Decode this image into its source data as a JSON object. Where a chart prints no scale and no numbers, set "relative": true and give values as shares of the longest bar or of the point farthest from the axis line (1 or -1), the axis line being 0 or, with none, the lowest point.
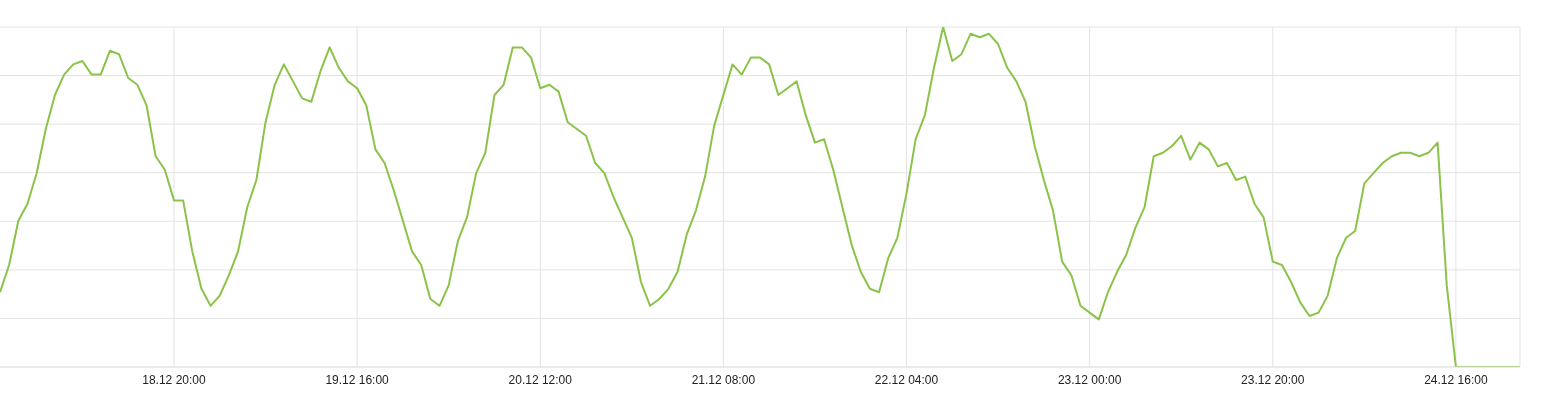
{
  "chart_data": {
    "type": "line",
    "relative": true,
    "grid": true,
    "tick_labels": "x",
    "marker": "none",
    "line_style": "solid",
    "legend": false,
    "categories": [
      null,
      null,
      null,
      null,
      null,
      null,
      null,
      null,
      null,
      null,
      null,
      null,
      null,
      null,
      null,
      null,
      null,
      null,
      null,
      "18.12 20:00",
      null,
      null,
      null,
      null,
      null,
      null,
      null,
      null,
      null,
      null,
      null,
      null,
      null,
      null,
      null,
      null,
      null,
      null,
      null,
      "19.12 16:00",
      null,
      null,
      null,
      null,
      null,
      null,
      null,
      null,
      null,
      null,
      null,
      null,
      null,
      null,
      null,
      null,
      null,
      null,
      null,
      "20.12 12:00",
      null,
      null,
      null,
      null,
      null,
      null,
      null,
      null,
      null,
      null,
      null,
      null,
      null,
      null,
      null,
      null,
      null,
      null,
      null,
      "21.12 08:00",
      null,
      null,
      null,
      null,
      null,
      null,
      null,
      null,
      null,
      null,
      null,
      null,
      null,
      null,
      null,
      null,
      null,
      null,
      null,
      "22.12 04:00",
      null,
      null,
      null,
      null,
      null,
      null,
      null,
      null,
      null,
      null,
      null,
      null,
      null,
      null,
      null,
      null,
      null,
      null,
      null,
      "23.12 00:00",
      null,
      null,
      null,
      null,
      null,
      null,
      null,
      null,
      null,
      null,
      null,
      null,
      null,
      null,
      null,
      null,
      null,
      null,
      null,
      "23.12 20:00",
      null,
      null,
      null,
      null,
      null,
      null,
      null,
      null,
      null,
      null,
      null,
      null,
      null,
      null,
      null,
      null,
      null,
      null,
      null,
      "24.12 16:00",
      null,
      null,
      null,
      null,
      null,
      null,
      null
    ],
    "series": [
      {
        "color": "#8bc34a",
        "values": [
          0.22,
          0.3,
          0.43,
          0.48,
          0.57,
          0.7,
          0.8,
          0.86,
          0.89,
          0.9,
          0.86,
          0.86,
          0.93,
          0.92,
          0.85,
          0.83,
          0.77,
          0.62,
          0.58,
          0.49,
          0.49,
          0.34,
          0.23,
          0.18,
          0.21,
          0.27,
          0.34,
          0.47,
          0.55,
          0.72,
          0.83,
          0.89,
          0.84,
          0.79,
          0.78,
          0.87,
          0.94,
          0.88,
          0.84,
          0.82,
          0.77,
          0.64,
          0.6,
          0.52,
          0.43,
          0.34,
          0.3,
          0.2,
          0.18,
          0.24,
          0.37,
          0.44,
          0.57,
          0.63,
          0.8,
          0.83,
          0.94,
          0.94,
          0.91,
          0.82,
          0.83,
          0.81,
          0.72,
          0.7,
          0.68,
          0.6,
          0.57,
          0.5,
          0.44,
          0.38,
          0.25,
          0.18,
          0.2,
          0.23,
          0.28,
          0.39,
          0.46,
          0.56,
          0.71,
          0.8,
          0.89,
          0.86,
          0.91,
          0.91,
          0.89,
          0.8,
          0.82,
          0.84,
          0.74,
          0.66,
          0.67,
          0.58,
          0.47,
          0.36,
          0.28,
          0.23,
          0.22,
          0.32,
          0.38,
          0.51,
          0.67,
          0.74,
          0.88,
          1.0,
          0.9,
          0.92,
          0.98,
          0.97,
          0.98,
          0.95,
          0.88,
          0.84,
          0.78,
          0.65,
          0.55,
          0.46,
          0.31,
          0.27,
          0.18,
          0.16,
          0.14,
          0.22,
          0.28,
          0.33,
          0.41,
          0.47,
          0.62,
          0.63,
          0.65,
          0.68,
          0.61,
          0.66,
          0.64,
          0.59,
          0.6,
          0.55,
          0.56,
          0.48,
          0.44,
          0.31,
          0.3,
          0.25,
          0.19,
          0.15,
          0.16,
          0.21,
          0.32,
          0.38,
          0.4,
          0.54,
          0.57,
          0.6,
          0.62,
          0.63,
          0.63,
          0.62,
          0.63,
          0.66,
          0.24,
          0,
          0,
          0,
          0,
          0,
          0,
          0,
          0
        ]
      }
    ]
  }
}
